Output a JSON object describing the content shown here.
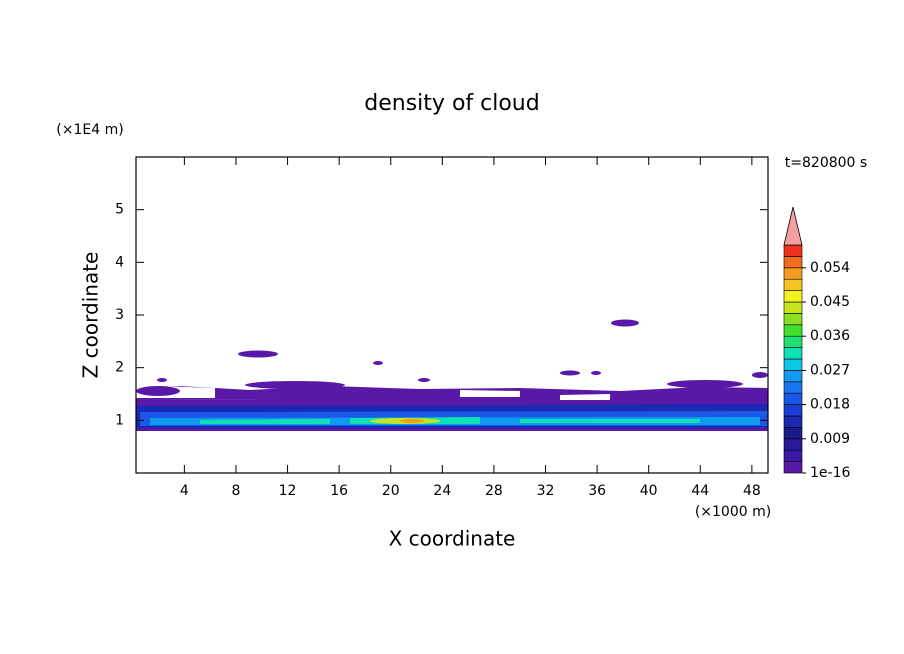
{
  "chart_data": {
    "type": "contour",
    "title": "density of cloud",
    "x_label": "X coordinate",
    "y_label": "Z coordinate",
    "x_unit": "(×1000 m)",
    "y_unit": "(×1E4 m)",
    "time_label": "t=820800 s",
    "xlim": [
      0.25,
      49.25
    ],
    "xticks": [
      4,
      8,
      12,
      16,
      20,
      24,
      28,
      32,
      36,
      40,
      44,
      48
    ],
    "ylim": [
      0,
      6
    ],
    "yticks": [
      1,
      2,
      3,
      4,
      5
    ],
    "colorbar_lim": [
      0,
      0.06
    ],
    "colorbar_ticks": [
      1e-16,
      0.009,
      0.018,
      0.027,
      0.036,
      0.045,
      0.054
    ],
    "colors": [
      "#5a18a8",
      "#3c18a8",
      "#28189a",
      "#1a1a88",
      "#1a28b4",
      "#1a3ed4",
      "#1a58e8",
      "#1a76f0",
      "#109af0",
      "#10c4e4",
      "#10e0b4",
      "#20e074",
      "#40e030",
      "#88e020",
      "#c8e420",
      "#f4f020",
      "#f4c420",
      "#f49c20",
      "#f46c20",
      "#f03020"
    ],
    "over_color": "#f4a0a0"
  }
}
